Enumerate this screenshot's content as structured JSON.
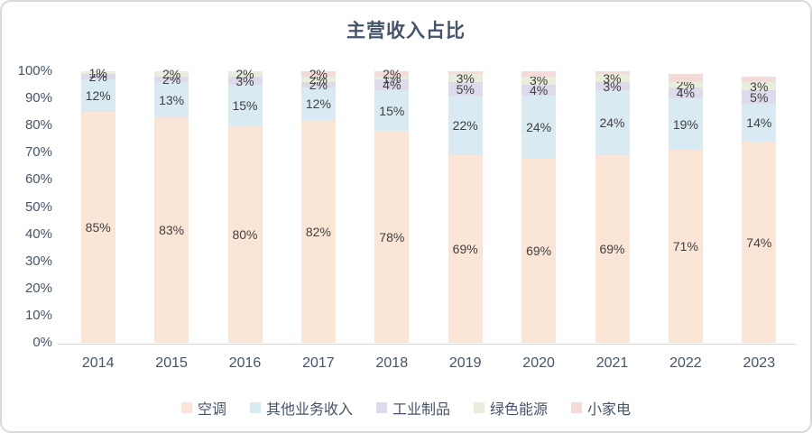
{
  "window": {
    "background": "#ffffff",
    "border_color": "#d9d9d9",
    "title_color": "#44546a",
    "axis_text_color": "#44546a",
    "data_label_color": "#404040",
    "axis_line_color": "#d9d9d9"
  },
  "chart_data": {
    "type": "bar",
    "stacked": true,
    "percent_stacked": true,
    "title": "主营收入占比",
    "xlabel": "",
    "ylabel": "",
    "ylim": [
      0,
      100
    ],
    "ytick_step": 10,
    "yticks": [
      "0%",
      "10%",
      "20%",
      "30%",
      "40%",
      "50%",
      "60%",
      "70%",
      "80%",
      "90%",
      "100%"
    ],
    "grid": false,
    "legend_position": "bottom",
    "categories": [
      "2014",
      "2015",
      "2016",
      "2017",
      "2018",
      "2019",
      "2020",
      "2021",
      "2022",
      "2023"
    ],
    "series": [
      {
        "name": "空调",
        "color": "#fbe5d6",
        "values": [
          85,
          83,
          80,
          82,
          78,
          69,
          69,
          69,
          71,
          74
        ],
        "labels": [
          "85%",
          "83%",
          "80%",
          "82%",
          "78%",
          "69%",
          "69%",
          "69%",
          "71%",
          "74%"
        ]
      },
      {
        "name": "其他业务收入",
        "color": "#daeaf2",
        "values": [
          12,
          13,
          15,
          12,
          15,
          22,
          24,
          24,
          19,
          14
        ],
        "labels": [
          "12%",
          "13%",
          "15%",
          "12%",
          "15%",
          "22%",
          "24%",
          "24%",
          "19%",
          "14%"
        ]
      },
      {
        "name": "工业制品",
        "color": "#dfdaeb",
        "values": [
          2,
          2,
          3,
          2,
          4,
          5,
          4,
          3,
          4,
          5
        ],
        "labels": [
          "2%",
          "2%",
          "3%",
          "2%",
          "4%",
          "5%",
          "4%",
          "3%",
          "4%",
          "5%"
        ]
      },
      {
        "name": "绿色能源",
        "color": "#e7eed9",
        "values": [
          1,
          2,
          2,
          2,
          1,
          3,
          3,
          3,
          2,
          3
        ],
        "labels": [
          "1%",
          "2%",
          "2%",
          "2%",
          "1%",
          "3%",
          "3%",
          "3%",
          "2%",
          "3%"
        ]
      },
      {
        "name": "小家电",
        "color": "#f5dada",
        "values": [
          0,
          0,
          0,
          2,
          2,
          1,
          2,
          1,
          3,
          2
        ],
        "labels": [
          "",
          "",
          "",
          "2%",
          "2%",
          "",
          "",
          "",
          "",
          ""
        ]
      }
    ]
  }
}
